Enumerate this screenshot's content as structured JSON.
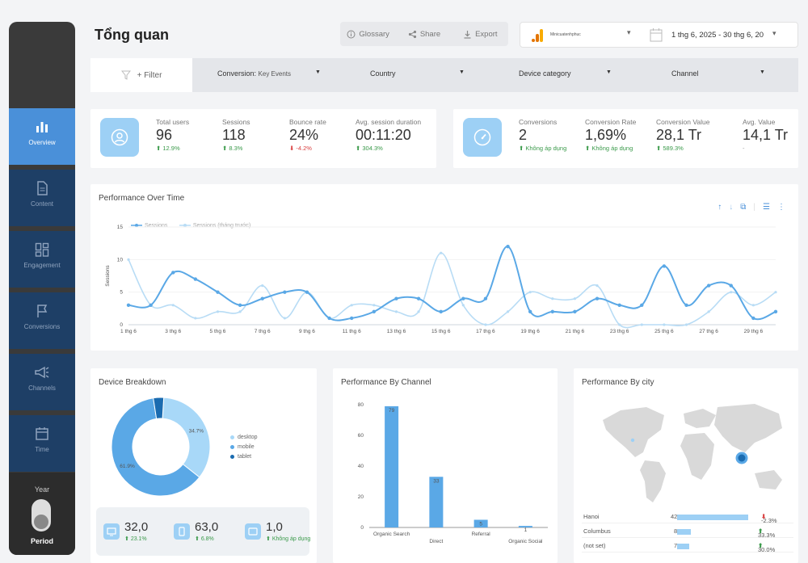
{
  "header": {
    "title": "Tổng quan",
    "glossary": "Glossary",
    "share": "Share",
    "export": "Export",
    "property_name": "Minicuatenhphuc",
    "date_range": "1 thg 6, 2025 - 30 thg 6, 20"
  },
  "sidebar": {
    "items": [
      {
        "label": "Overview",
        "icon": "bar-chart-icon"
      },
      {
        "label": "Content",
        "icon": "document-icon"
      },
      {
        "label": "Engagement",
        "icon": "dashboard-icon"
      },
      {
        "label": "Conversions",
        "icon": "flag-icon"
      },
      {
        "label": "Channels",
        "icon": "megaphone-icon"
      },
      {
        "label": "Time",
        "icon": "calendar-icon"
      }
    ],
    "period": {
      "year_label": "Year",
      "period_label": "Period"
    }
  },
  "filters": {
    "filter_label": "+ Filter",
    "conversion_label": "Conversion:",
    "conversion_value": "Key Events",
    "country": "Country",
    "device_category": "Device category",
    "channel": "Channel"
  },
  "kpis_left": [
    {
      "label": "Total users",
      "value": "96",
      "delta": "12.9%",
      "trend": "up"
    },
    {
      "label": "Sessions",
      "value": "118",
      "delta": "8.3%",
      "trend": "up"
    },
    {
      "label": "Bounce rate",
      "value": "24%",
      "delta": "-4.2%",
      "trend": "down"
    },
    {
      "label": "Avg. session duration",
      "value": "00:11:20",
      "delta": "304.3%",
      "trend": "up"
    }
  ],
  "kpis_right": [
    {
      "label": "Conversions",
      "value": "2",
      "delta": "Không áp dụng",
      "trend": "up"
    },
    {
      "label": "Conversion Rate",
      "value": "1,69%",
      "delta": "Không áp dụng",
      "trend": "up"
    },
    {
      "label": "Conversion Value",
      "value": "28,1 Tr",
      "delta": "589.3%",
      "trend": "up"
    },
    {
      "label": "Avg. Value",
      "value": "14,1 Tr",
      "delta": "-",
      "trend": "none"
    }
  ],
  "performance_chart": {
    "title": "Performance Over Time",
    "legend_current": "Sessions",
    "legend_previous": "Sessions (tháng trước)",
    "ylabel": "Sessions",
    "yticks": [
      "0",
      "5",
      "10",
      "15"
    ],
    "xticks": [
      "1 thg 6",
      "3 thg 6",
      "5 thg 6",
      "7 thg 6",
      "9 thg 6",
      "11 thg 6",
      "13 thg 6",
      "15 thg 6",
      "17 thg 6",
      "19 thg 6",
      "21 thg 6",
      "23 thg 6",
      "25 thg 6",
      "27 thg 6",
      "29 thg 6"
    ]
  },
  "chart_data": [
    {
      "type": "line",
      "title": "Performance Over Time",
      "ylabel": "Sessions",
      "xlabel": "",
      "ylim": [
        0,
        15
      ],
      "x": [
        "1 thg 6",
        "2 thg 6",
        "3 thg 6",
        "4 thg 6",
        "5 thg 6",
        "6 thg 6",
        "7 thg 6",
        "8 thg 6",
        "9 thg 6",
        "10 thg 6",
        "11 thg 6",
        "12 thg 6",
        "13 thg 6",
        "14 thg 6",
        "15 thg 6",
        "16 thg 6",
        "17 thg 6",
        "18 thg 6",
        "19 thg 6",
        "20 thg 6",
        "21 thg 6",
        "22 thg 6",
        "23 thg 6",
        "24 thg 6",
        "25 thg 6",
        "26 thg 6",
        "27 thg 6",
        "28 thg 6",
        "29 thg 6",
        "30 thg 6"
      ],
      "series": [
        {
          "name": "Sessions",
          "color": "#5aa8e6",
          "values": [
            3,
            3,
            8,
            7,
            5,
            3,
            4,
            5,
            5,
            1,
            1,
            2,
            4,
            4,
            2,
            4,
            4,
            12,
            2,
            2,
            2,
            4,
            3,
            3,
            9,
            3,
            6,
            6,
            1,
            2
          ]
        },
        {
          "name": "Sessions (tháng trước)",
          "color": "#b8dcf5",
          "values": [
            10,
            3,
            3,
            1,
            2,
            2,
            6,
            1,
            5,
            1,
            3,
            3,
            2,
            2,
            11,
            3,
            0,
            2,
            5,
            4,
            4,
            6,
            0,
            0,
            0,
            0,
            2,
            5,
            3,
            5
          ]
        }
      ]
    },
    {
      "type": "pie",
      "title": "Device Breakdown",
      "categories": [
        "desktop",
        "mobile",
        "tablet"
      ],
      "values": [
        34.7,
        61.9,
        3.4
      ],
      "labels": [
        "34.7%",
        "61.9%",
        ""
      ],
      "colors": [
        "#a8d8f8",
        "#5aa8e6",
        "#1a6bb0"
      ]
    },
    {
      "type": "bar",
      "title": "Performance By Channel",
      "categories": [
        "Organic Search",
        "Direct",
        "Referral",
        "Organic Social"
      ],
      "values": [
        79,
        33,
        5,
        1
      ],
      "labels": [
        "79",
        "33",
        "5",
        "1"
      ],
      "ylim": [
        0,
        80
      ],
      "yticks": [
        "0",
        "20",
        "40",
        "60",
        "80"
      ]
    }
  ],
  "device_breakdown": {
    "title": "Device Breakdown",
    "stats": [
      {
        "icon": "desktop-icon",
        "value": "32,0",
        "delta": "23.1%"
      },
      {
        "icon": "mobile-icon",
        "value": "63,0",
        "delta": "6.8%"
      },
      {
        "icon": "tablet-icon",
        "value": "1,0",
        "delta": "Không áp dụng"
      }
    ]
  },
  "channel_chart": {
    "title": "Performance By Channel"
  },
  "city": {
    "title": "Performance By city",
    "rows": [
      {
        "name": "Hanoi",
        "value": "42",
        "delta": "-2.3%",
        "bar": 1.0
      },
      {
        "name": "Columbus",
        "value": "8",
        "delta": "33.3%",
        "bar": 0.19
      },
      {
        "name": "(not set)",
        "value": "7",
        "delta": "30.0%",
        "bar": 0.17
      }
    ]
  },
  "colors": {
    "accent": "#4a90d9",
    "light_blue": "#9dd0f5",
    "sidebar_dark": "#1e3f66",
    "up": "#3a9a4a",
    "down": "#d94040"
  }
}
